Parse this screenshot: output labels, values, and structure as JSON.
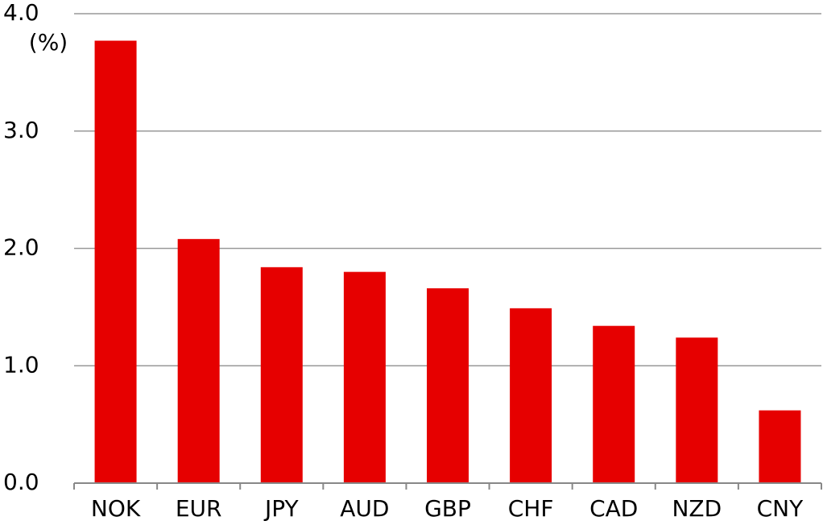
{
  "chart_data": {
    "type": "bar",
    "y_axis_label": "(%)",
    "categories": [
      "NOK",
      "EUR",
      "JPY",
      "AUD",
      "GBP",
      "CHF",
      "CAD",
      "NZD",
      "CNY"
    ],
    "values": [
      3.77,
      2.08,
      1.84,
      1.8,
      1.66,
      1.49,
      1.34,
      1.24,
      0.62
    ],
    "color": "#e60000",
    "ylim": [
      0,
      4
    ],
    "yticks": [
      {
        "value": 0,
        "label": "0.0"
      },
      {
        "value": 1,
        "label": "1.0"
      },
      {
        "value": 2,
        "label": "2.0"
      },
      {
        "value": 3,
        "label": "3.0"
      },
      {
        "value": 4,
        "label": "4.0"
      }
    ],
    "grid": true
  }
}
